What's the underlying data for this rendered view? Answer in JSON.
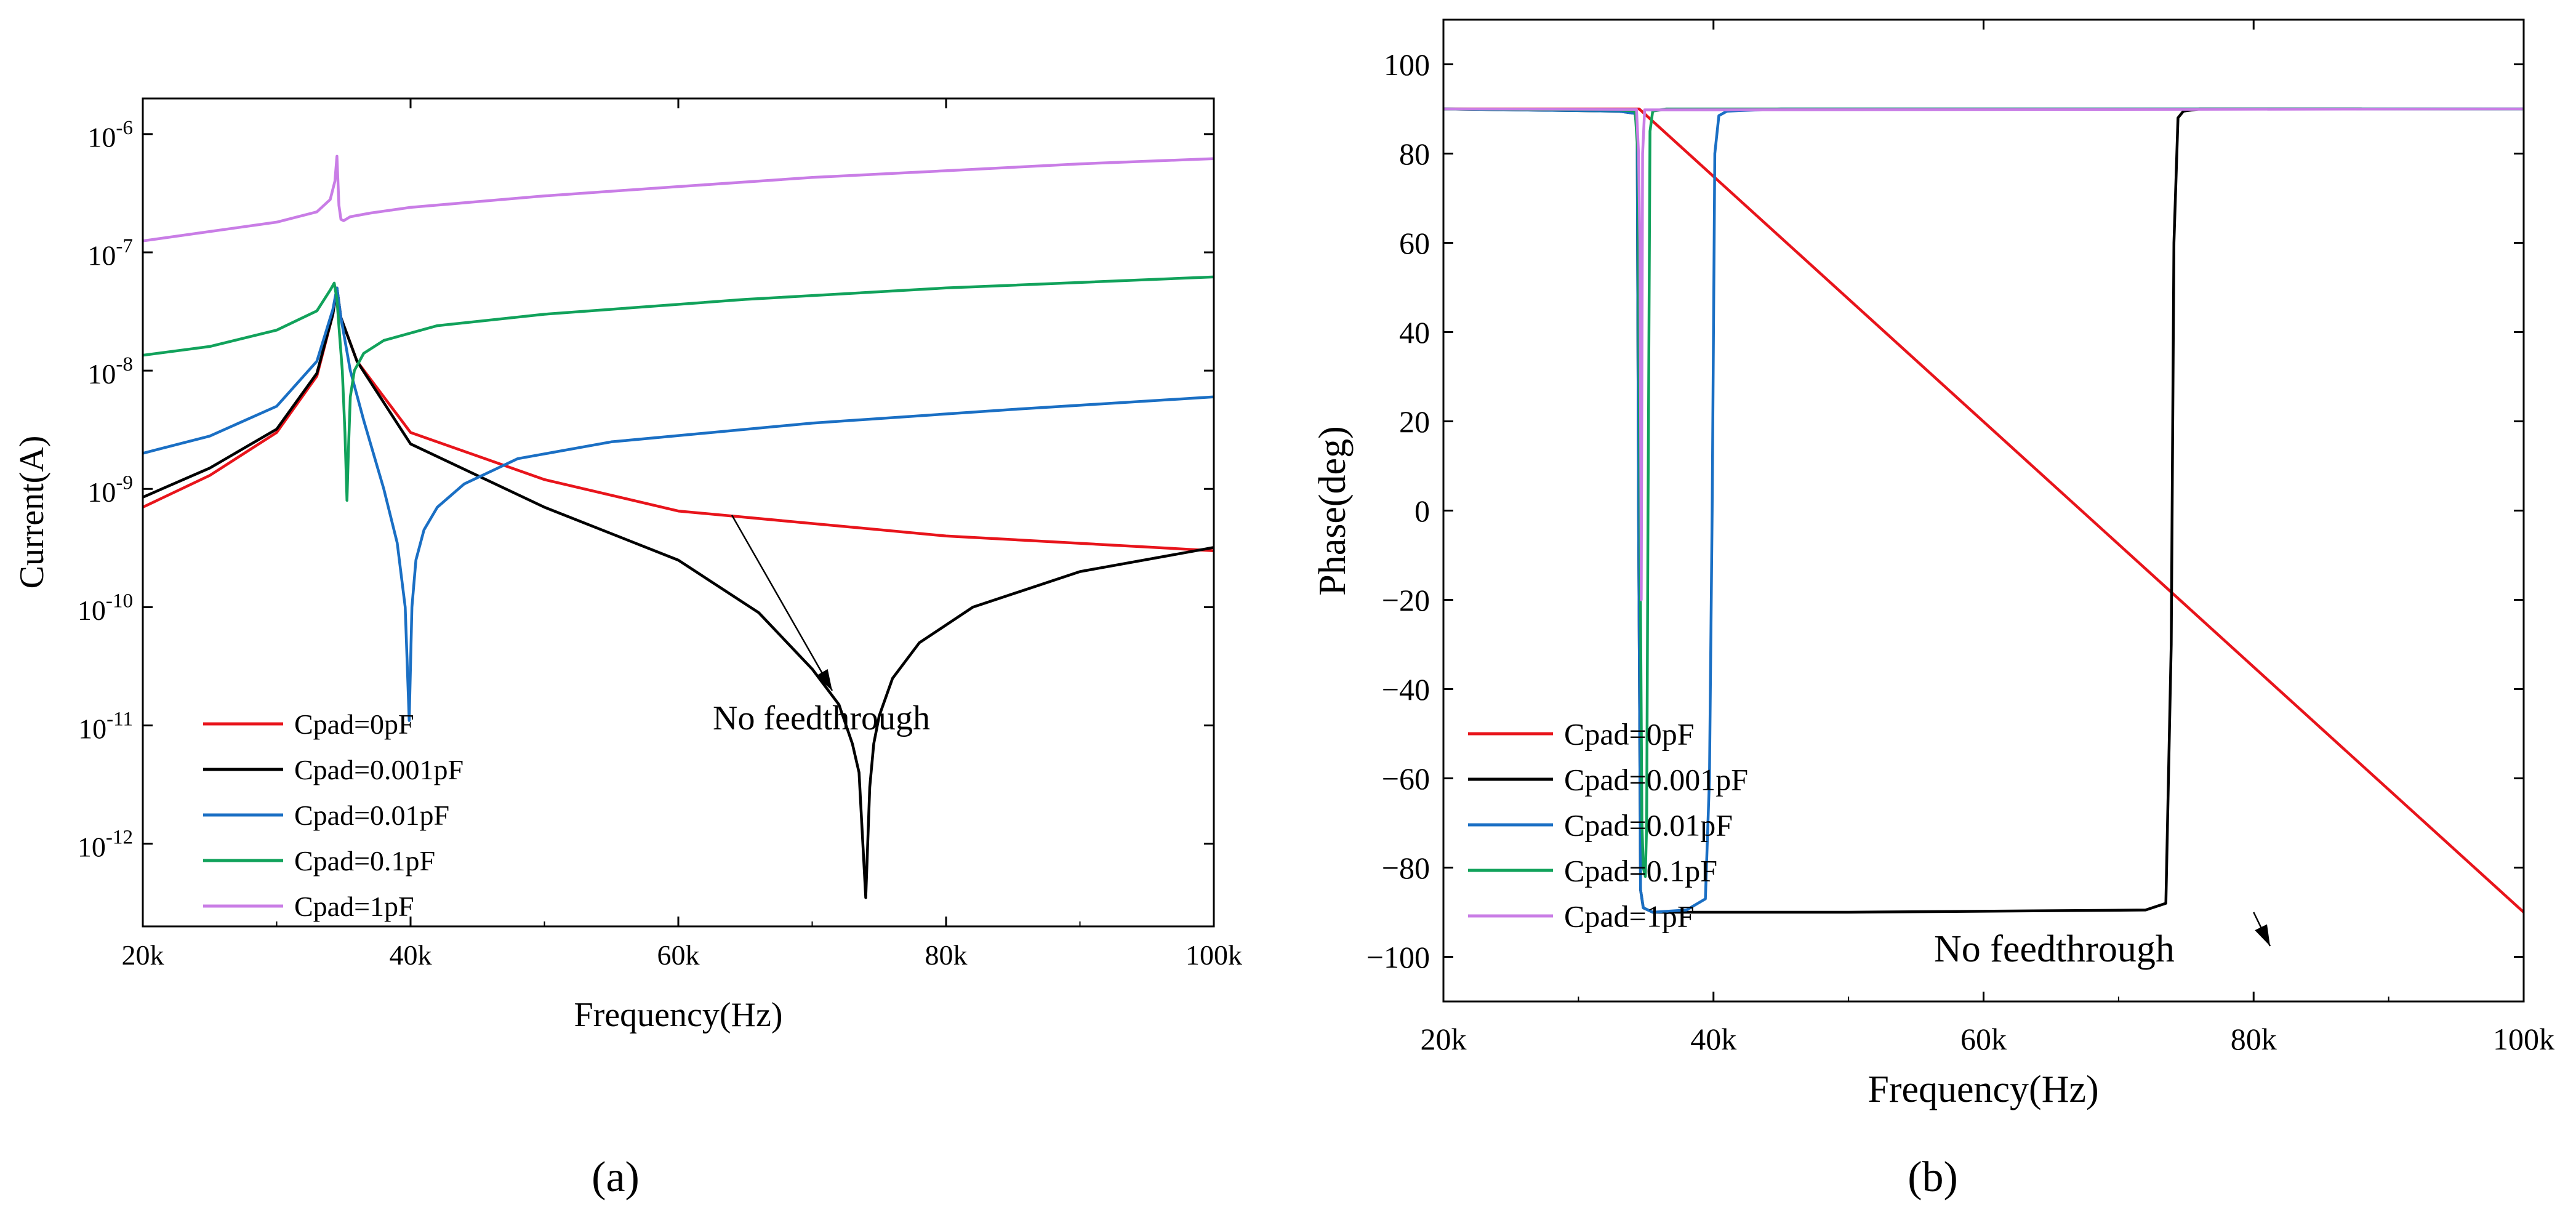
{
  "figure": {
    "panel_a_label": "(a)",
    "panel_b_label": "(b)"
  },
  "chart_data": [
    {
      "type": "line",
      "panel": "a",
      "xlabel": "Frequency(Hz)",
      "ylabel": "Current(A)",
      "xscale": "linear",
      "yscale": "log",
      "xlim": [
        20000,
        100000
      ],
      "ylim": [
        2e-13,
        2e-06
      ],
      "xticks": [
        20000,
        40000,
        60000,
        80000,
        100000
      ],
      "xtick_labels": [
        "20k",
        "40k",
        "60k",
        "80k",
        "100k"
      ],
      "yticks": [
        1e-12,
        1e-11,
        1e-10,
        1e-09,
        1e-08,
        1e-07,
        1e-06
      ],
      "ytick_mantissa": "10",
      "ytick_exponents": [
        "-12",
        "-11",
        "-10",
        "-9",
        "-8",
        "-7",
        "-6"
      ],
      "legend_position": "bottom-left",
      "annotation": {
        "text": "No feedthrough",
        "points_to_x": 64000,
        "points_to_y": 6e-10
      },
      "series": [
        {
          "name": "Cpad=0pF",
          "color": "#e8141b",
          "x": [
            20000,
            25000,
            30000,
            33000,
            34200,
            34500,
            34800,
            36000,
            40000,
            50000,
            60000,
            80000,
            100000
          ],
          "y": [
            7e-10,
            1.3e-09,
            3e-09,
            9e-09,
            3e-08,
            5e-08,
            2.8e-08,
            1.2e-08,
            3e-09,
            1.2e-09,
            6.5e-10,
            4e-10,
            3e-10
          ]
        },
        {
          "name": "Cpad=0.001pF",
          "color": "#000000",
          "x": [
            20000,
            25000,
            30000,
            33000,
            34200,
            34500,
            34800,
            36000,
            40000,
            50000,
            60000,
            66000,
            70000,
            72000,
            73000,
            73500,
            74000,
            74300,
            74600,
            75000,
            76000,
            78000,
            82000,
            90000,
            100000
          ],
          "y": [
            8.5e-10,
            1.5e-09,
            3.2e-09,
            9.5e-09,
            3e-08,
            5e-08,
            2.8e-08,
            1.2e-08,
            2.4e-09,
            7e-10,
            2.5e-10,
            9e-11,
            3e-11,
            1.5e-11,
            7e-12,
            4e-12,
            3.5e-13,
            3e-12,
            7e-12,
            1.2e-11,
            2.5e-11,
            5e-11,
            1e-10,
            2e-10,
            3.2e-10
          ]
        },
        {
          "name": "Cpad=0.01pF",
          "color": "#1a6fc4",
          "x": [
            20000,
            25000,
            30000,
            33000,
            34200,
            34500,
            34800,
            35500,
            36500,
            38000,
            39000,
            39600,
            39900,
            40100,
            40400,
            41000,
            42000,
            44000,
            48000,
            55000,
            70000,
            85000,
            100000
          ],
          "y": [
            2e-09,
            2.8e-09,
            5e-09,
            1.2e-08,
            3.3e-08,
            5e-08,
            2.8e-08,
            1e-08,
            3.8e-09,
            1e-09,
            3.5e-10,
            1e-10,
            1.1e-11,
            1e-10,
            2.5e-10,
            4.5e-10,
            7e-10,
            1.1e-09,
            1.8e-09,
            2.5e-09,
            3.6e-09,
            4.7e-09,
            6e-09
          ]
        },
        {
          "name": "Cpad=0.1pF",
          "color": "#11a25b",
          "x": [
            20000,
            25000,
            30000,
            33000,
            34000,
            34300,
            34500,
            34700,
            34900,
            35100,
            35250,
            35350,
            35500,
            35800,
            36500,
            38000,
            42000,
            50000,
            65000,
            80000,
            100000
          ],
          "y": [
            1.35e-08,
            1.6e-08,
            2.2e-08,
            3.2e-08,
            4.8e-08,
            5.5e-08,
            4e-08,
            2e-08,
            1e-08,
            3e-09,
            8e-10,
            2e-09,
            6e-09,
            1e-08,
            1.4e-08,
            1.8e-08,
            2.4e-08,
            3e-08,
            4e-08,
            5e-08,
            6.2e-08
          ]
        },
        {
          "name": "Cpad=1pF",
          "color": "#c97de6",
          "x": [
            20000,
            25000,
            30000,
            33000,
            34000,
            34350,
            34500,
            34650,
            34800,
            35000,
            35500,
            37000,
            40000,
            50000,
            60000,
            70000,
            80000,
            90000,
            100000
          ],
          "y": [
            1.25e-07,
            1.5e-07,
            1.8e-07,
            2.2e-07,
            2.8e-07,
            4e-07,
            6.5e-07,
            2.5e-07,
            1.9e-07,
            1.85e-07,
            2e-07,
            2.15e-07,
            2.4e-07,
            3e-07,
            3.6e-07,
            4.3e-07,
            4.9e-07,
            5.6e-07,
            6.2e-07
          ]
        }
      ]
    },
    {
      "type": "line",
      "panel": "b",
      "xlabel": "Frequency(Hz)",
      "ylabel": "Phase(deg)",
      "xscale": "linear",
      "yscale": "linear",
      "xlim": [
        20000,
        100000
      ],
      "ylim": [
        -110,
        110
      ],
      "xticks": [
        20000,
        40000,
        60000,
        80000,
        100000
      ],
      "xtick_labels": [
        "20k",
        "40k",
        "60k",
        "80k",
        "100k"
      ],
      "yticks": [
        -100,
        -80,
        -60,
        -40,
        -20,
        0,
        20,
        40,
        60,
        80,
        100
      ],
      "ytick_labels": [
        "−100",
        "−80",
        "−60",
        "−40",
        "−20",
        "0",
        "20",
        "40",
        "60",
        "80",
        "100"
      ],
      "legend_position": "bottom-left",
      "annotation": {
        "text": "No feedthrough",
        "points_to_x": 80000,
        "points_to_y": -90
      },
      "series": [
        {
          "name": "Cpad=0pF",
          "color": "#e8141b",
          "x": [
            20000,
            34500,
            100000
          ],
          "y": [
            90,
            90,
            -90
          ]
        },
        {
          "name": "Cpad=0.001pF",
          "color": "#000000",
          "x": [
            20000,
            33000,
            34200,
            34350,
            34450,
            34600,
            34800,
            35500,
            50000,
            72000,
            73500,
            73900,
            74100,
            74400,
            74800,
            76000,
            88000
          ],
          "y": [
            90,
            89.5,
            89,
            85,
            0,
            -85,
            -89,
            -90,
            -90,
            -89.5,
            -88,
            -30,
            60,
            88,
            89.5,
            90,
            90
          ]
        },
        {
          "name": "Cpad=0.01pF",
          "color": "#1a6fc4",
          "x": [
            20000,
            33000,
            34200,
            34350,
            34450,
            34600,
            34800,
            35500,
            38000,
            39400,
            39700,
            39900,
            40100,
            40400,
            41000,
            45000,
            100000
          ],
          "y": [
            90,
            89.5,
            89,
            85,
            0,
            -85,
            -89,
            -90,
            -89.5,
            -87,
            -60,
            0,
            80,
            88.5,
            89.5,
            90,
            90
          ]
        },
        {
          "name": "Cpad=0.1pF",
          "color": "#11a25b",
          "x": [
            20000,
            33000,
            34200,
            34400,
            34550,
            34700,
            34800,
            34950,
            35050,
            35150,
            35300,
            35500,
            36500,
            100000
          ],
          "y": [
            90,
            89.8,
            89.5,
            80,
            0,
            -70,
            -80,
            -82,
            -70,
            0,
            85,
            89.5,
            90,
            90
          ]
        },
        {
          "name": "Cpad=1pF",
          "color": "#c97de6",
          "x": [
            20000,
            34300,
            34450,
            34550,
            34650,
            34750,
            34900,
            100000
          ],
          "y": [
            90,
            89.9,
            80,
            60,
            -20,
            80,
            89.8,
            90
          ]
        }
      ]
    }
  ]
}
